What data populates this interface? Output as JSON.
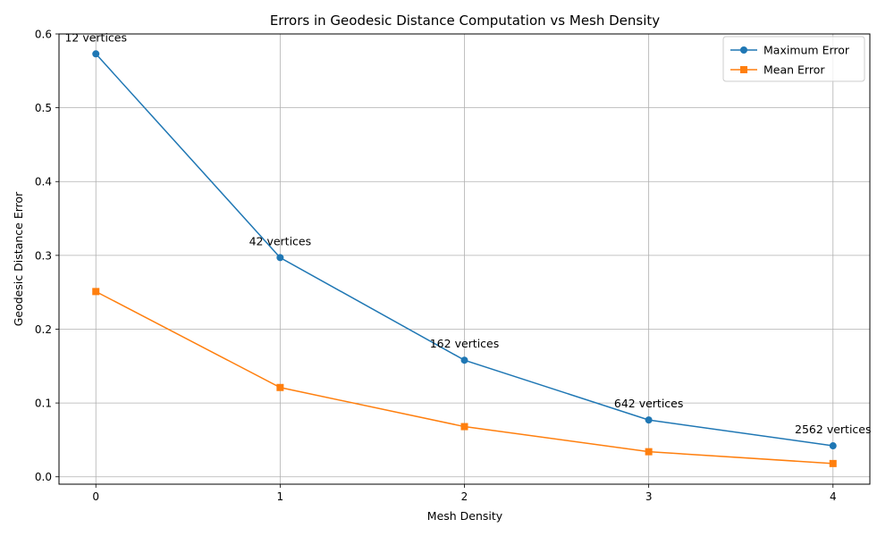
{
  "chart_data": {
    "type": "line",
    "title": "Errors in Geodesic Distance Computation vs Mesh Density",
    "xlabel": "Mesh Density",
    "ylabel": "Geodesic Distance Error",
    "x": [
      0,
      1,
      2,
      3,
      4
    ],
    "xticks": [
      "0",
      "1",
      "2",
      "3",
      "4"
    ],
    "yticks": [
      "0.0",
      "0.1",
      "0.2",
      "0.3",
      "0.4",
      "0.5",
      "0.6"
    ],
    "xlim": [
      -0.2,
      4.2
    ],
    "ylim": [
      -0.01,
      0.6
    ],
    "grid": true,
    "legend_position": "top-right",
    "series": [
      {
        "name": "Maximum Error",
        "color": "#1f77b4",
        "marker": "circle",
        "values": [
          0.573,
          0.297,
          0.158,
          0.077,
          0.042
        ]
      },
      {
        "name": "Mean Error",
        "color": "#ff7f0e",
        "marker": "square",
        "values": [
          0.251,
          0.121,
          0.068,
          0.034,
          0.018
        ]
      }
    ],
    "annotations": [
      "12 vertices",
      "42 vertices",
      "162 vertices",
      "642 vertices",
      "2562 vertices"
    ]
  }
}
